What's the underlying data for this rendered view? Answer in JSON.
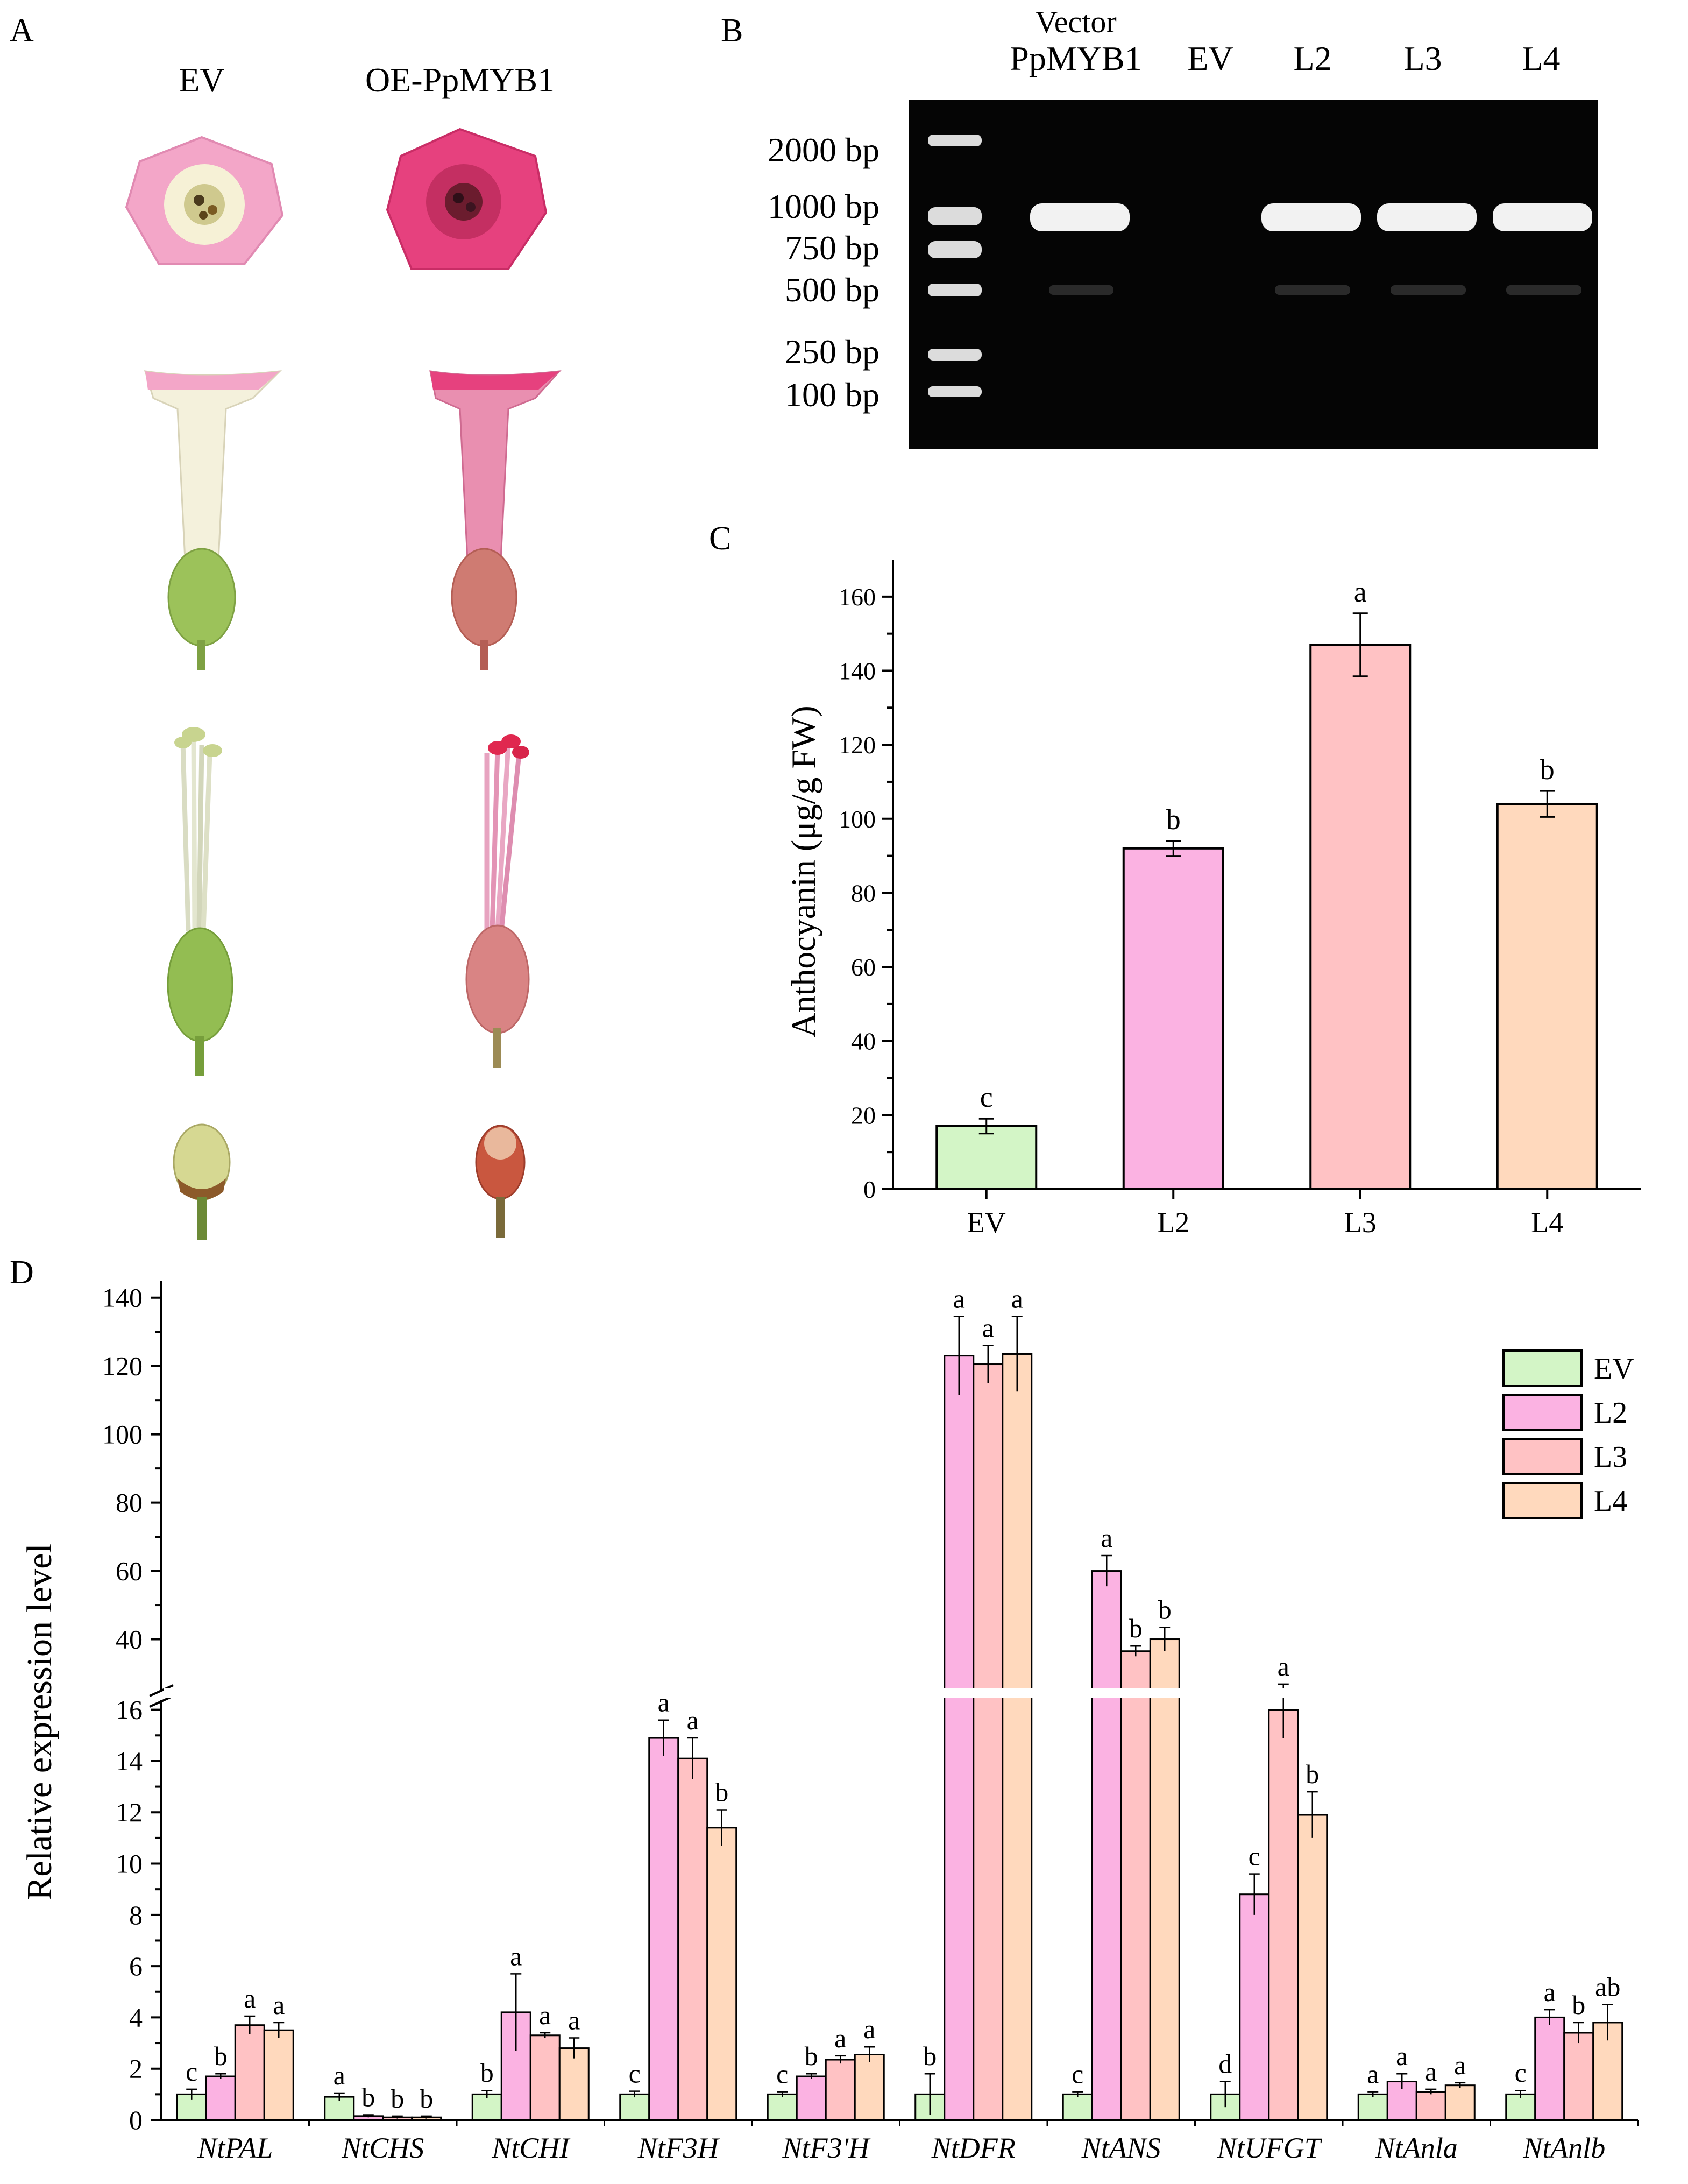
{
  "panels": {
    "a": "A",
    "b": "B",
    "c": "C",
    "d": "D"
  },
  "panel_a": {
    "col_ev": "EV",
    "col_oe": "OE-PpMYB1",
    "colors": {
      "ev_petal": "#f3a6c8",
      "ev_tube": "#f4f1dc",
      "ev_green": "#9cc25a",
      "oe_petal": "#e6417e",
      "oe_tube": "#e27fa0",
      "oe_calyx": "#cf6b6b",
      "oe_bud": "#c9573f"
    }
  },
  "gel": {
    "lanes": [
      {
        "label_line1": "Vector",
        "label_line2": "PpMYB1"
      },
      {
        "label_line1": "",
        "label_line2": "EV"
      },
      {
        "label_line1": "",
        "label_line2": "L2"
      },
      {
        "label_line1": "",
        "label_line2": "L3"
      },
      {
        "label_line1": "",
        "label_line2": "L4"
      }
    ],
    "ladder": [
      "2000 bp",
      "1000 bp",
      "750 bp",
      "500 bp",
      "250 bp",
      "100 bp"
    ]
  },
  "chart_data": [
    {
      "type": "bar",
      "panel": "C",
      "categories": [
        "EV",
        "L2",
        "L3",
        "L4"
      ],
      "values": [
        17,
        92,
        147,
        104
      ],
      "errors": [
        2,
        2,
        8.5,
        3.5
      ],
      "letters": [
        "c",
        "b",
        "a",
        "b"
      ],
      "colors": [
        "#d3f5c6",
        "#fbb2e2",
        "#ffc2c4",
        "#ffd9bd"
      ],
      "ylabel": "Anthocyanin (μg/g FW)",
      "ylim": [
        0,
        170
      ],
      "yticks": [
        0,
        20,
        40,
        60,
        80,
        100,
        120,
        140,
        160
      ]
    },
    {
      "type": "bar",
      "panel": "D",
      "ylabel": "Relative expression level",
      "categories": [
        "NtPAL",
        "NtCHS",
        "NtCHI",
        "NtF3H",
        "NtF3'H",
        "NtDFR",
        "NtANS",
        "NtUFGT",
        "NtAnla",
        "NtAnlb"
      ],
      "broken_axis": {
        "lower_range": [
          0,
          17
        ],
        "upper_range": [
          30,
          145
        ]
      },
      "yticks_lower": [
        0,
        2,
        4,
        6,
        8,
        10,
        12,
        14,
        16
      ],
      "yticks_upper": [
        40,
        60,
        80,
        100,
        120,
        140
      ],
      "series": [
        {
          "name": "EV",
          "color": "#d3f5c6",
          "values": [
            1.0,
            0.9,
            1.0,
            1.0,
            1.0,
            1.0,
            1.0,
            1.0,
            1.0,
            1.0
          ],
          "errors": [
            0.2,
            0.15,
            0.15,
            0.12,
            0.1,
            0.8,
            0.1,
            0.5,
            0.1,
            0.15
          ],
          "letters": [
            "c",
            "a",
            "b",
            "c",
            "c",
            "b",
            "c",
            "d",
            "a",
            "c"
          ]
        },
        {
          "name": "L2",
          "color": "#fbb2e2",
          "values": [
            1.7,
            0.15,
            4.2,
            14.9,
            1.7,
            123,
            60,
            8.8,
            1.5,
            4.0
          ],
          "errors": [
            0.1,
            0.05,
            1.5,
            0.7,
            0.1,
            11.5,
            4.5,
            0.8,
            0.3,
            0.3
          ],
          "letters": [
            "b",
            "b",
            "a",
            "a",
            "b",
            "a",
            "a",
            "c",
            "a",
            "a"
          ]
        },
        {
          "name": "L3",
          "color": "#ffc2c4",
          "values": [
            3.7,
            0.1,
            3.3,
            14.1,
            2.35,
            120.5,
            36.5,
            16.0,
            1.1,
            3.4
          ],
          "errors": [
            0.35,
            0.05,
            0.1,
            0.8,
            0.15,
            5.5,
            1.5,
            1.1,
            0.1,
            0.4
          ],
          "letters": [
            "a",
            "b",
            "a",
            "a",
            "a",
            "a",
            "b",
            "a",
            "a",
            "b"
          ]
        },
        {
          "name": "L4",
          "color": "#ffd9bd",
          "values": [
            3.5,
            0.1,
            2.8,
            11.4,
            2.55,
            123.5,
            40,
            11.9,
            1.35,
            3.8
          ],
          "errors": [
            0.3,
            0.05,
            0.4,
            0.7,
            0.3,
            11,
            3.5,
            0.9,
            0.1,
            0.7
          ],
          "letters": [
            "a",
            "b",
            "a",
            "b",
            "a",
            "a",
            "b",
            "b",
            "a",
            "ab"
          ]
        }
      ],
      "legend": [
        "EV",
        "L2",
        "L3",
        "L4"
      ],
      "legend_position": "top-right"
    }
  ]
}
